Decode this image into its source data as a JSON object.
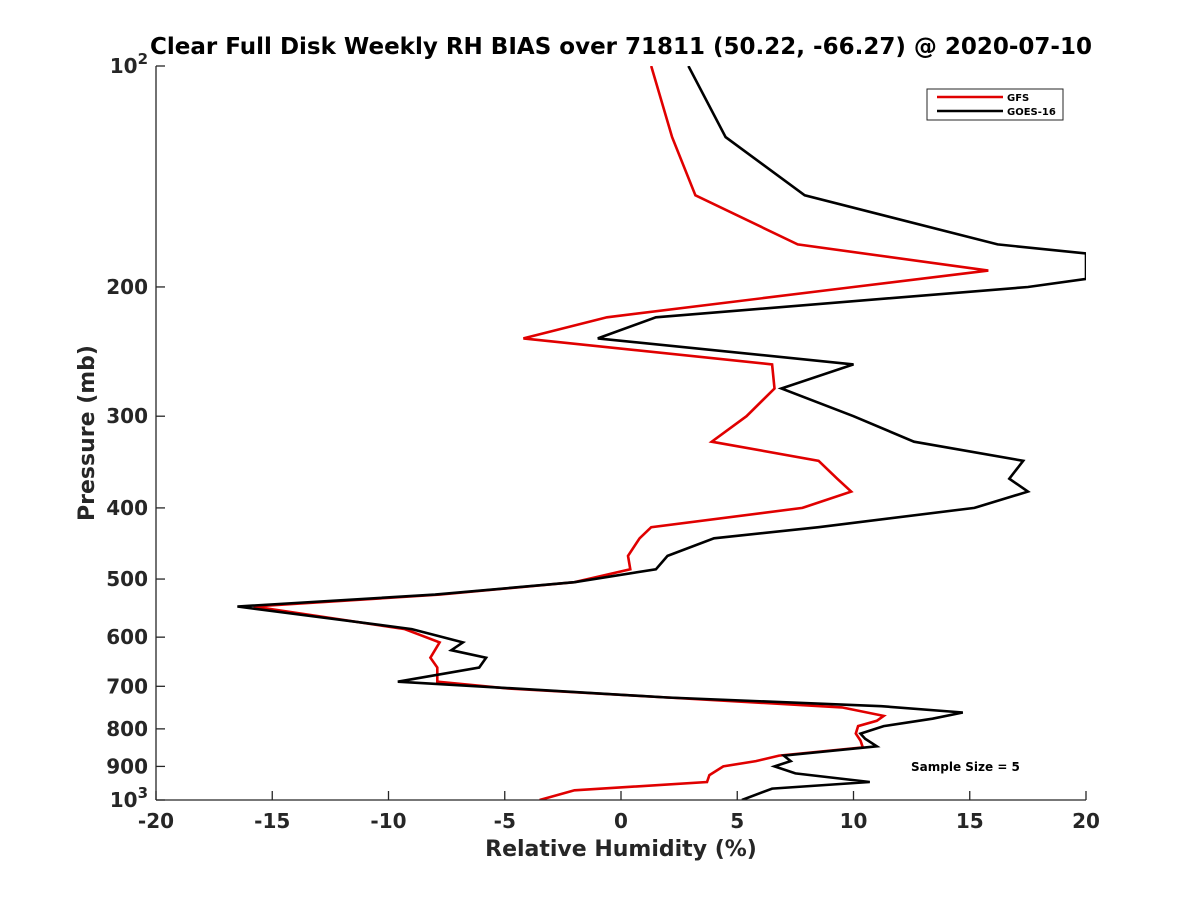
{
  "chart_data": {
    "type": "line",
    "title": "Clear Full Disk Weekly RH BIAS over 71811 (50.22, -66.27) @ 2020-07-10",
    "xlabel": "Relative Humidity (%)",
    "ylabel": "Pressure (mb)",
    "xlim": [
      -20,
      20
    ],
    "ylim": [
      100,
      1000
    ],
    "y_scale": "log",
    "y_reversed": true,
    "grid": false,
    "legend_position": "top-right",
    "x_ticks": [
      "-20",
      "-15",
      "-10",
      "-5",
      "0",
      "5",
      "10",
      "15",
      "20"
    ],
    "y_ticks": [
      {
        "value": 100,
        "label": "10",
        "exp": "2"
      },
      {
        "value": 200,
        "label": "200",
        "exp": ""
      },
      {
        "value": 300,
        "label": "300",
        "exp": ""
      },
      {
        "value": 400,
        "label": "400",
        "exp": ""
      },
      {
        "value": 500,
        "label": "500",
        "exp": ""
      },
      {
        "value": 600,
        "label": "600",
        "exp": ""
      },
      {
        "value": 700,
        "label": "700",
        "exp": ""
      },
      {
        "value": 800,
        "label": "800",
        "exp": ""
      },
      {
        "value": 900,
        "label": "900",
        "exp": ""
      },
      {
        "value": 1000,
        "label": "10",
        "exp": "3"
      }
    ],
    "series": [
      {
        "name": "GFS",
        "color": "#e00000",
        "points": [
          [
            1.3,
            100
          ],
          [
            2.2,
            125
          ],
          [
            3.2,
            150
          ],
          [
            7.6,
            175
          ],
          [
            15.8,
            190
          ],
          [
            10.0,
            200
          ],
          [
            -0.6,
            220
          ],
          [
            -4.2,
            235
          ],
          [
            6.5,
            255
          ],
          [
            6.6,
            275
          ],
          [
            5.4,
            300
          ],
          [
            3.9,
            325
          ],
          [
            8.5,
            345
          ],
          [
            9.3,
            365
          ],
          [
            9.9,
            380
          ],
          [
            7.8,
            400
          ],
          [
            1.3,
            425
          ],
          [
            0.8,
            440
          ],
          [
            0.3,
            465
          ],
          [
            0.4,
            485
          ],
          [
            -2.0,
            505
          ],
          [
            -7.8,
            525
          ],
          [
            -15.8,
            545
          ],
          [
            -9.3,
            585
          ],
          [
            -7.8,
            610
          ],
          [
            -8.2,
            640
          ],
          [
            -7.9,
            660
          ],
          [
            -7.9,
            690
          ],
          [
            -4.8,
            705
          ],
          [
            2.0,
            725
          ],
          [
            9.5,
            748
          ],
          [
            11.3,
            768
          ],
          [
            11.0,
            780
          ],
          [
            10.2,
            793
          ],
          [
            10.1,
            812
          ],
          [
            10.3,
            830
          ],
          [
            10.4,
            848
          ],
          [
            6.8,
            870
          ],
          [
            5.8,
            885
          ],
          [
            4.4,
            900
          ],
          [
            3.8,
            925
          ],
          [
            3.7,
            945
          ],
          [
            -2.0,
            970
          ],
          [
            -3.5,
            1000
          ]
        ]
      },
      {
        "name": "GOES-16",
        "color": "#000000",
        "points": [
          [
            2.9,
            100
          ],
          [
            4.5,
            125
          ],
          [
            7.9,
            150
          ],
          [
            16.2,
            175
          ],
          [
            20.0,
            180
          ],
          [
            20.0,
            195
          ],
          [
            17.5,
            200
          ],
          [
            1.5,
            220
          ],
          [
            -1.0,
            235
          ],
          [
            10.0,
            255
          ],
          [
            6.9,
            275
          ],
          [
            10.0,
            300
          ],
          [
            12.6,
            325
          ],
          [
            17.3,
            345
          ],
          [
            16.7,
            365
          ],
          [
            17.5,
            380
          ],
          [
            15.2,
            400
          ],
          [
            8.5,
            425
          ],
          [
            4.0,
            440
          ],
          [
            2.0,
            465
          ],
          [
            1.5,
            485
          ],
          [
            -2.0,
            505
          ],
          [
            -8.0,
            525
          ],
          [
            -16.5,
            545
          ],
          [
            -9.0,
            585
          ],
          [
            -6.8,
            610
          ],
          [
            -7.3,
            625
          ],
          [
            -5.8,
            640
          ],
          [
            -6.1,
            660
          ],
          [
            -9.6,
            690
          ],
          [
            -4.5,
            705
          ],
          [
            2.0,
            725
          ],
          [
            11.2,
            745
          ],
          [
            14.7,
            760
          ],
          [
            13.4,
            775
          ],
          [
            11.3,
            793
          ],
          [
            10.3,
            812
          ],
          [
            10.5,
            825
          ],
          [
            11.0,
            845
          ],
          [
            7.0,
            870
          ],
          [
            7.3,
            885
          ],
          [
            6.6,
            900
          ],
          [
            7.5,
            920
          ],
          [
            10.7,
            945
          ],
          [
            6.5,
            965
          ],
          [
            5.2,
            1000
          ]
        ]
      }
    ],
    "annotations": [
      "Sample Size = 5"
    ]
  }
}
